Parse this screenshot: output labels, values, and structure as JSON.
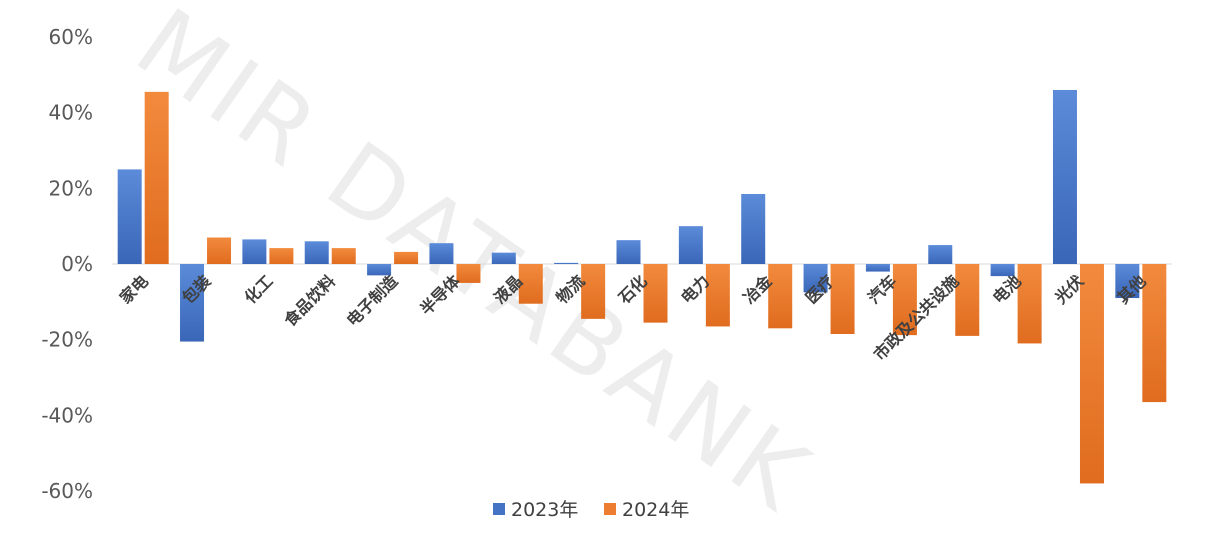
{
  "watermark": "MIR DATABANK",
  "chart_data": {
    "type": "bar",
    "categories": [
      "家电",
      "包装",
      "化工",
      "食品饮料",
      "电子制造",
      "半导体",
      "液晶",
      "物流",
      "石化",
      "电力",
      "冶金",
      "医疗",
      "汽车",
      "市政及公共设施",
      "电池",
      "光伏",
      "其他"
    ],
    "series": [
      {
        "name": "2023年",
        "color": "#4472C4",
        "values": [
          25,
          -20.5,
          6.5,
          6,
          -3,
          5.5,
          3,
          0.3,
          6.3,
          10,
          18.5,
          -7.5,
          -2,
          5,
          -3.2,
          46,
          -9
        ]
      },
      {
        "name": "2024年",
        "color": "#ED7D31",
        "values": [
          45.5,
          7,
          4.2,
          4.2,
          3.2,
          -5,
          -10.5,
          -14.5,
          -15.5,
          -16.5,
          -17,
          -18.5,
          -18.8,
          -19,
          -21,
          -58,
          -36.5
        ]
      }
    ],
    "ylim": [
      -60,
      60
    ],
    "yticks": [
      "60%",
      "40%",
      "20%",
      "0%",
      "-20%",
      "-40%",
      "-60%"
    ],
    "ytick_values": [
      60,
      40,
      20,
      0,
      -20,
      -40,
      -60
    ],
    "legend_position": "bottom-center",
    "grid": false
  }
}
